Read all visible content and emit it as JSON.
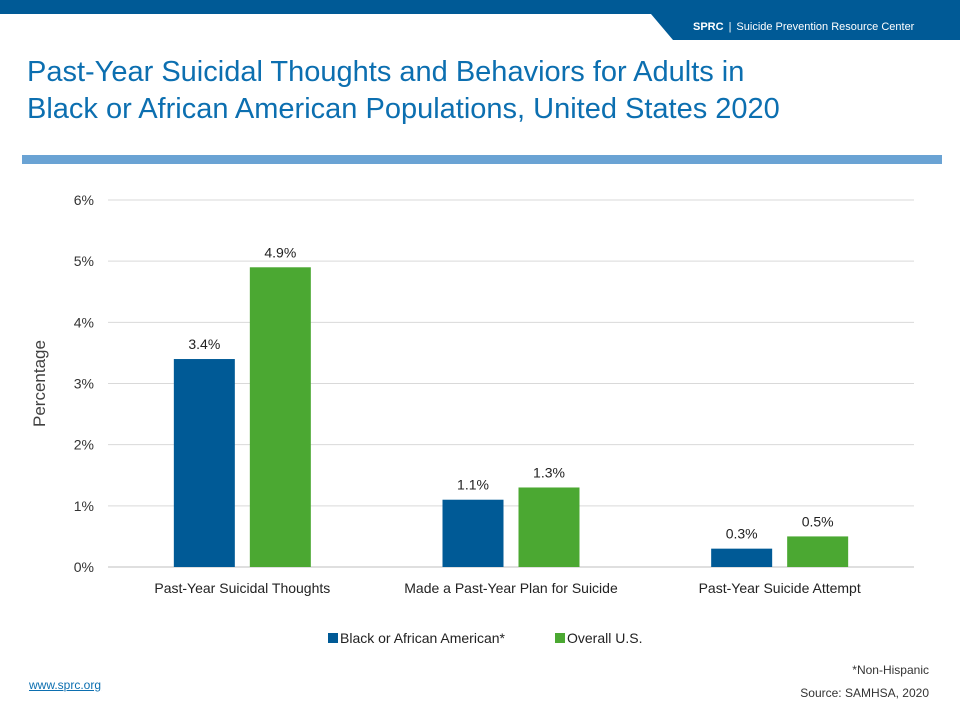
{
  "header": {
    "org": "SPRC",
    "separator": "|",
    "org_name": "Suicide Prevention Resource Center",
    "brand_color": "#005a96"
  },
  "slide": {
    "title_line1": "Past-Year Suicidal Thoughts and Behaviors for Adults in",
    "title_line2": "Black or African American Populations, United States 2020",
    "title_color": "#0c6fb0",
    "rule_color": "#6aa3d4"
  },
  "chart_data": {
    "type": "bar",
    "title": "",
    "xlabel": "",
    "ylabel": "Percentage",
    "ylim": [
      0,
      6
    ],
    "yticks": [
      "0%",
      "1%",
      "2%",
      "3%",
      "4%",
      "5%",
      "6%"
    ],
    "grid": true,
    "legend": "bottom",
    "categories": [
      "Past-Year Suicidal Thoughts",
      "Made a Past-Year Plan for Suicide",
      "Past-Year Suicide Attempt"
    ],
    "series": [
      {
        "name": "Black or African American*",
        "color": "#005a96",
        "values": [
          3.4,
          1.1,
          0.3
        ],
        "labels": [
          "3.4%",
          "1.1%",
          "0.3%"
        ]
      },
      {
        "name": "Overall U.S.",
        "color": "#4ba832",
        "values": [
          4.9,
          1.3,
          0.5
        ],
        "labels": [
          "4.9%",
          "1.3%",
          "0.5%"
        ]
      }
    ]
  },
  "footer": {
    "link": "www.sprc.org",
    "footnote": "*Non-Hispanic",
    "source": "Source: SAMHSA, 2020"
  }
}
